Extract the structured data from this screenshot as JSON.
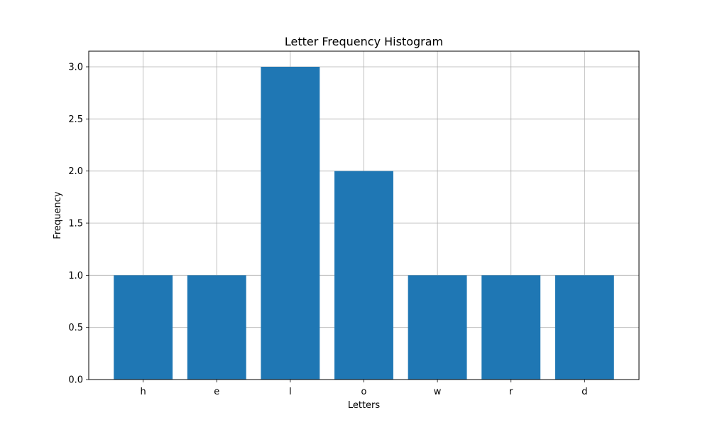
{
  "chart_data": {
    "type": "bar",
    "title": "Letter Frequency Histogram",
    "xlabel": "Letters",
    "ylabel": "Frequency",
    "categories": [
      "h",
      "e",
      "l",
      "o",
      "w",
      "r",
      "d"
    ],
    "values": [
      1,
      1,
      3,
      2,
      1,
      1,
      1
    ],
    "ylim": [
      0,
      3.15
    ],
    "yticks": [
      0.0,
      0.5,
      1.0,
      1.5,
      2.0,
      2.5,
      3.0
    ],
    "ytick_labels": [
      "0.0",
      "0.5",
      "1.0",
      "1.5",
      "2.0",
      "2.5",
      "3.0"
    ],
    "grid": true,
    "bar_color": "#1f77b4",
    "grid_color": "#b0b0b0"
  }
}
